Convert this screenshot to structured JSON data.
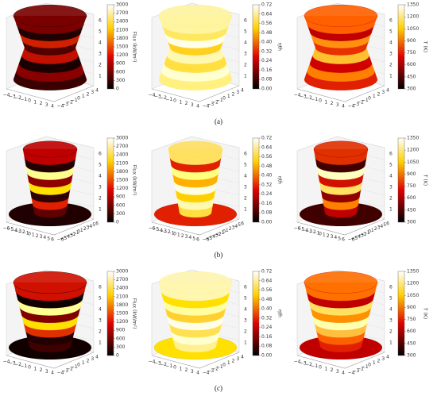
{
  "rows": [
    {
      "caption": "(a)",
      "panels": [
        {
          "colorbar_label": "Flux (kW/m²)",
          "colorbar_ticks": [
            "0",
            "300",
            "600",
            "900",
            "1200",
            "1500",
            "1800",
            "2100",
            "2400",
            "2700",
            "3000"
          ],
          "x_ticks": [
            "−4",
            "−3",
            "−2",
            "−1",
            "0",
            "1",
            "2",
            "3",
            "4"
          ],
          "y_ticks": [
            "−4",
            "−3",
            "−2",
            "−1",
            "0",
            "1",
            "2",
            "3",
            "4"
          ],
          "z_ticks": [
            "1",
            "2",
            "3",
            "4",
            "5",
            "6"
          ]
        },
        {
          "colorbar_label": "ηth",
          "colorbar_ticks": [
            "0.00",
            "0.08",
            "0.16",
            "0.24",
            "0.32",
            "0.40",
            "0.48",
            "0.56",
            "0.64",
            "0.72"
          ],
          "x_ticks": [
            "−4",
            "−3",
            "−2",
            "−1",
            "0",
            "1",
            "2",
            "3",
            "4"
          ],
          "y_ticks": [
            "−4",
            "−3",
            "−2",
            "−1",
            "0",
            "1",
            "2",
            "3",
            "4"
          ],
          "z_ticks": [
            "1",
            "2",
            "3",
            "4",
            "5",
            "6"
          ]
        },
        {
          "colorbar_label": "T (K)",
          "colorbar_ticks": [
            "300",
            "450",
            "600",
            "750",
            "900",
            "1050",
            "1200",
            "1350"
          ],
          "x_ticks": [
            "−4",
            "−3",
            "−2",
            "−1",
            "0",
            "1",
            "2",
            "3",
            "4"
          ],
          "y_ticks": [
            "−4",
            "−3",
            "−2",
            "−1",
            "0",
            "1",
            "2",
            "3",
            "4"
          ],
          "z_ticks": [
            "1",
            "2",
            "3",
            "4",
            "5",
            "6"
          ]
        }
      ]
    },
    {
      "caption": "(b)",
      "panels": [
        {
          "colorbar_label": "Flux (kW/m²)",
          "colorbar_ticks": [
            "0",
            "300",
            "600",
            "900",
            "1200",
            "1500",
            "1800",
            "2100",
            "2400",
            "2700",
            "3000"
          ],
          "x_ticks": [
            "−6",
            "−5",
            "−4",
            "−3",
            "−2",
            "−1",
            "0",
            "1",
            "2",
            "3",
            "4",
            "5",
            "6"
          ],
          "y_ticks": [
            "−6",
            "−5",
            "−4",
            "−3",
            "−2",
            "−1",
            "0",
            "1",
            "2",
            "3",
            "4",
            "5",
            "6"
          ],
          "z_ticks": [
            "1",
            "2",
            "3",
            "4",
            "5",
            "6"
          ]
        },
        {
          "colorbar_label": "ηth",
          "colorbar_ticks": [
            "0.00",
            "0.08",
            "0.16",
            "0.24",
            "0.32",
            "0.40",
            "0.48",
            "0.56",
            "0.64",
            "0.72"
          ],
          "x_ticks": [
            "−6",
            "−5",
            "−4",
            "−3",
            "−2",
            "−1",
            "0",
            "1",
            "2",
            "3",
            "4",
            "5",
            "6"
          ],
          "y_ticks": [
            "−6",
            "−5",
            "−4",
            "−3",
            "−2",
            "−1",
            "0",
            "1",
            "2",
            "3",
            "4",
            "5",
            "6"
          ],
          "z_ticks": [
            "1",
            "2",
            "3",
            "4",
            "5",
            "6"
          ]
        },
        {
          "colorbar_label": "T (K)",
          "colorbar_ticks": [
            "300",
            "450",
            "600",
            "750",
            "900",
            "1050",
            "1200",
            "1350"
          ],
          "x_ticks": [
            "−6",
            "−5",
            "−4",
            "−3",
            "−2",
            "−1",
            "0",
            "1",
            "2",
            "3",
            "4",
            "5",
            "6"
          ],
          "y_ticks": [
            "−6",
            "−5",
            "−4",
            "−3",
            "−2",
            "−1",
            "0",
            "1",
            "2",
            "3",
            "4",
            "5",
            "6"
          ],
          "z_ticks": [
            "1",
            "2",
            "3",
            "4",
            "5",
            "6"
          ]
        }
      ]
    },
    {
      "caption": "(c)",
      "panels": [
        {
          "colorbar_label": "Flux (kW/m²)",
          "colorbar_ticks": [
            "0",
            "300",
            "600",
            "900",
            "1200",
            "1500",
            "1800",
            "2100",
            "2400",
            "2700",
            "3000"
          ],
          "x_ticks": [
            "−4",
            "−3",
            "−2",
            "−1",
            "0",
            "1",
            "2",
            "3",
            "4"
          ],
          "y_ticks": [
            "−4",
            "−3",
            "−2",
            "−1",
            "0",
            "1",
            "2",
            "3",
            "4"
          ],
          "z_ticks": [
            "1",
            "2",
            "3",
            "4",
            "5",
            "6"
          ]
        },
        {
          "colorbar_label": "ηth",
          "colorbar_ticks": [
            "0.00",
            "0.08",
            "0.16",
            "0.24",
            "0.32",
            "0.40",
            "0.48",
            "0.56",
            "0.64",
            "0.72"
          ],
          "x_ticks": [
            "−4",
            "−3",
            "−2",
            "−1",
            "0",
            "1",
            "2",
            "3",
            "4"
          ],
          "y_ticks": [
            "−4",
            "−3",
            "−2",
            "−1",
            "0",
            "1",
            "2",
            "3",
            "4"
          ],
          "z_ticks": [
            "1",
            "2",
            "3",
            "4",
            "5",
            "6"
          ]
        },
        {
          "colorbar_label": "T (K)",
          "colorbar_ticks": [
            "300",
            "450",
            "600",
            "750",
            "900",
            "1050",
            "1200",
            "1350"
          ],
          "x_ticks": [
            "−4",
            "−3",
            "−2",
            "−1",
            "0",
            "1",
            "2",
            "3",
            "4"
          ],
          "y_ticks": [
            "−4",
            "−3",
            "−2",
            "−1",
            "0",
            "1",
            "2",
            "3",
            "4"
          ],
          "z_ticks": [
            "1",
            "2",
            "3",
            "4",
            "5",
            "6"
          ]
        }
      ]
    }
  ]
}
